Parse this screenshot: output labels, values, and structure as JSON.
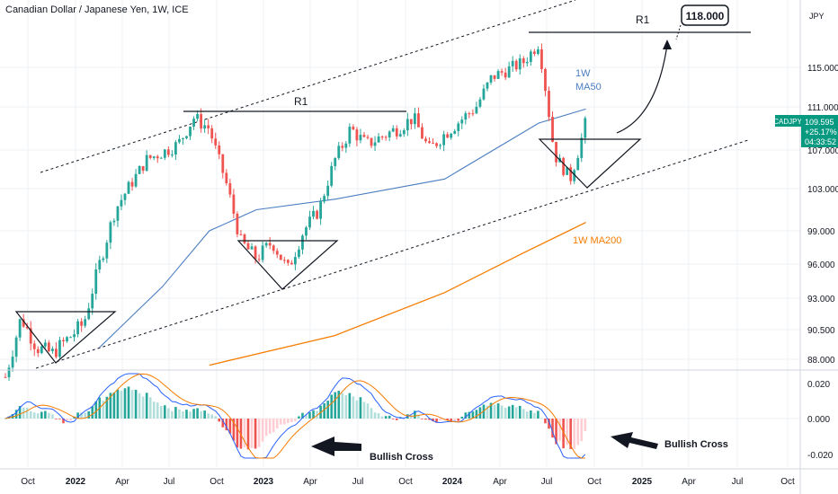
{
  "header": {
    "title": "Canadian Dollar / Japanese Yen, 1W, ICE",
    "currency": "JPY"
  },
  "price_badge": {
    "symbol": "CADJPY",
    "price": "109.595",
    "change": "+25.17%",
    "countdown": "04:33:52",
    "color": "#089981"
  },
  "annotations": {
    "r1_left": "R1",
    "r1_right": "R1",
    "target": "118.000",
    "ma50_line1": "1W",
    "ma50_line2": "MA50",
    "ma200": "1W MA200",
    "bullish_cross_1": "Bullish Cross",
    "bullish_cross_2": "Bullish Cross"
  },
  "colors": {
    "up": "#26a69a",
    "down": "#ef5350",
    "ma50": "#4a7ec2",
    "ma200": "#f57c00",
    "macd": "#2962ff",
    "signal": "#f57c00"
  },
  "chart_data": {
    "type": "candlestick",
    "title": "Canadian Dollar / Japanese Yen, 1W, ICE",
    "y_axis": {
      "ticks": [
        "115.000",
        "111.000",
        "107.000",
        "103.000",
        "99.000",
        "96.000",
        "93.000",
        "90.500",
        "88.000"
      ]
    },
    "x_axis": {
      "ticks": [
        "Oct",
        "2022",
        "Apr",
        "Jul",
        "Oct",
        "2023",
        "Apr",
        "Jul",
        "Oct",
        "2024",
        "Apr",
        "Jul",
        "Oct",
        "2025",
        "Apr",
        "Jul",
        "Oct"
      ],
      "bold": [
        "2022",
        "2023",
        "2024",
        "2025"
      ]
    },
    "price_keypoints": [
      {
        "date": "2021-09",
        "close": 86.5
      },
      {
        "date": "2021-10",
        "close": 91.5
      },
      {
        "date": "2021-11",
        "close": 89.0
      },
      {
        "date": "2021-12",
        "close": 88.5
      },
      {
        "date": "2022-02",
        "close": 91.0
      },
      {
        "date": "2022-03",
        "close": 96.0
      },
      {
        "date": "2022-04",
        "close": 101.0
      },
      {
        "date": "2022-06",
        "close": 106.0
      },
      {
        "date": "2022-08",
        "close": 107.5
      },
      {
        "date": "2022-09",
        "close": 110.0
      },
      {
        "date": "2022-10",
        "close": 109.0
      },
      {
        "date": "2022-11",
        "close": 104.0
      },
      {
        "date": "2022-12",
        "close": 98.0
      },
      {
        "date": "2023-01",
        "close": 96.5
      },
      {
        "date": "2023-02",
        "close": 98.0
      },
      {
        "date": "2023-03",
        "close": 95.5
      },
      {
        "date": "2023-04",
        "close": 99.0
      },
      {
        "date": "2023-05",
        "close": 101.0
      },
      {
        "date": "2023-06",
        "close": 106.0
      },
      {
        "date": "2023-07",
        "close": 109.0
      },
      {
        "date": "2023-08",
        "close": 107.5
      },
      {
        "date": "2023-10",
        "close": 109.0
      },
      {
        "date": "2023-11",
        "close": 110.0
      },
      {
        "date": "2023-12",
        "close": 107.0
      },
      {
        "date": "2024-01",
        "close": 108.5
      },
      {
        "date": "2024-03",
        "close": 111.0
      },
      {
        "date": "2024-04",
        "close": 114.0
      },
      {
        "date": "2024-06",
        "close": 115.5
      },
      {
        "date": "2024-07",
        "close": 117.5
      },
      {
        "date": "2024-08",
        "close": 106.5
      },
      {
        "date": "2024-09",
        "close": 104.0
      },
      {
        "date": "2024-10",
        "close": 109.6
      }
    ],
    "ma50_keypoints": [
      {
        "date": "2022-03",
        "value": 89.0
      },
      {
        "date": "2022-07",
        "value": 94.0
      },
      {
        "date": "2022-10",
        "value": 99.0
      },
      {
        "date": "2023-01",
        "value": 101.0
      },
      {
        "date": "2023-06",
        "value": 102.0
      },
      {
        "date": "2024-01",
        "value": 104.0
      },
      {
        "date": "2024-07",
        "value": 109.5
      },
      {
        "date": "2024-10",
        "value": 110.8
      }
    ],
    "ma200_keypoints": [
      {
        "date": "2022-10",
        "value": 87.5
      },
      {
        "date": "2023-06",
        "value": 90.0
      },
      {
        "date": "2024-01",
        "value": 93.5
      },
      {
        "date": "2024-06",
        "value": 97.0
      },
      {
        "date": "2024-10",
        "value": 99.8
      }
    ],
    "levels": {
      "r1_2022": 110.0,
      "r1_2024": 117.8,
      "target": 118.0
    },
    "macd_axis_ticks": [
      "0.020",
      "0.000",
      "-0.020"
    ]
  }
}
